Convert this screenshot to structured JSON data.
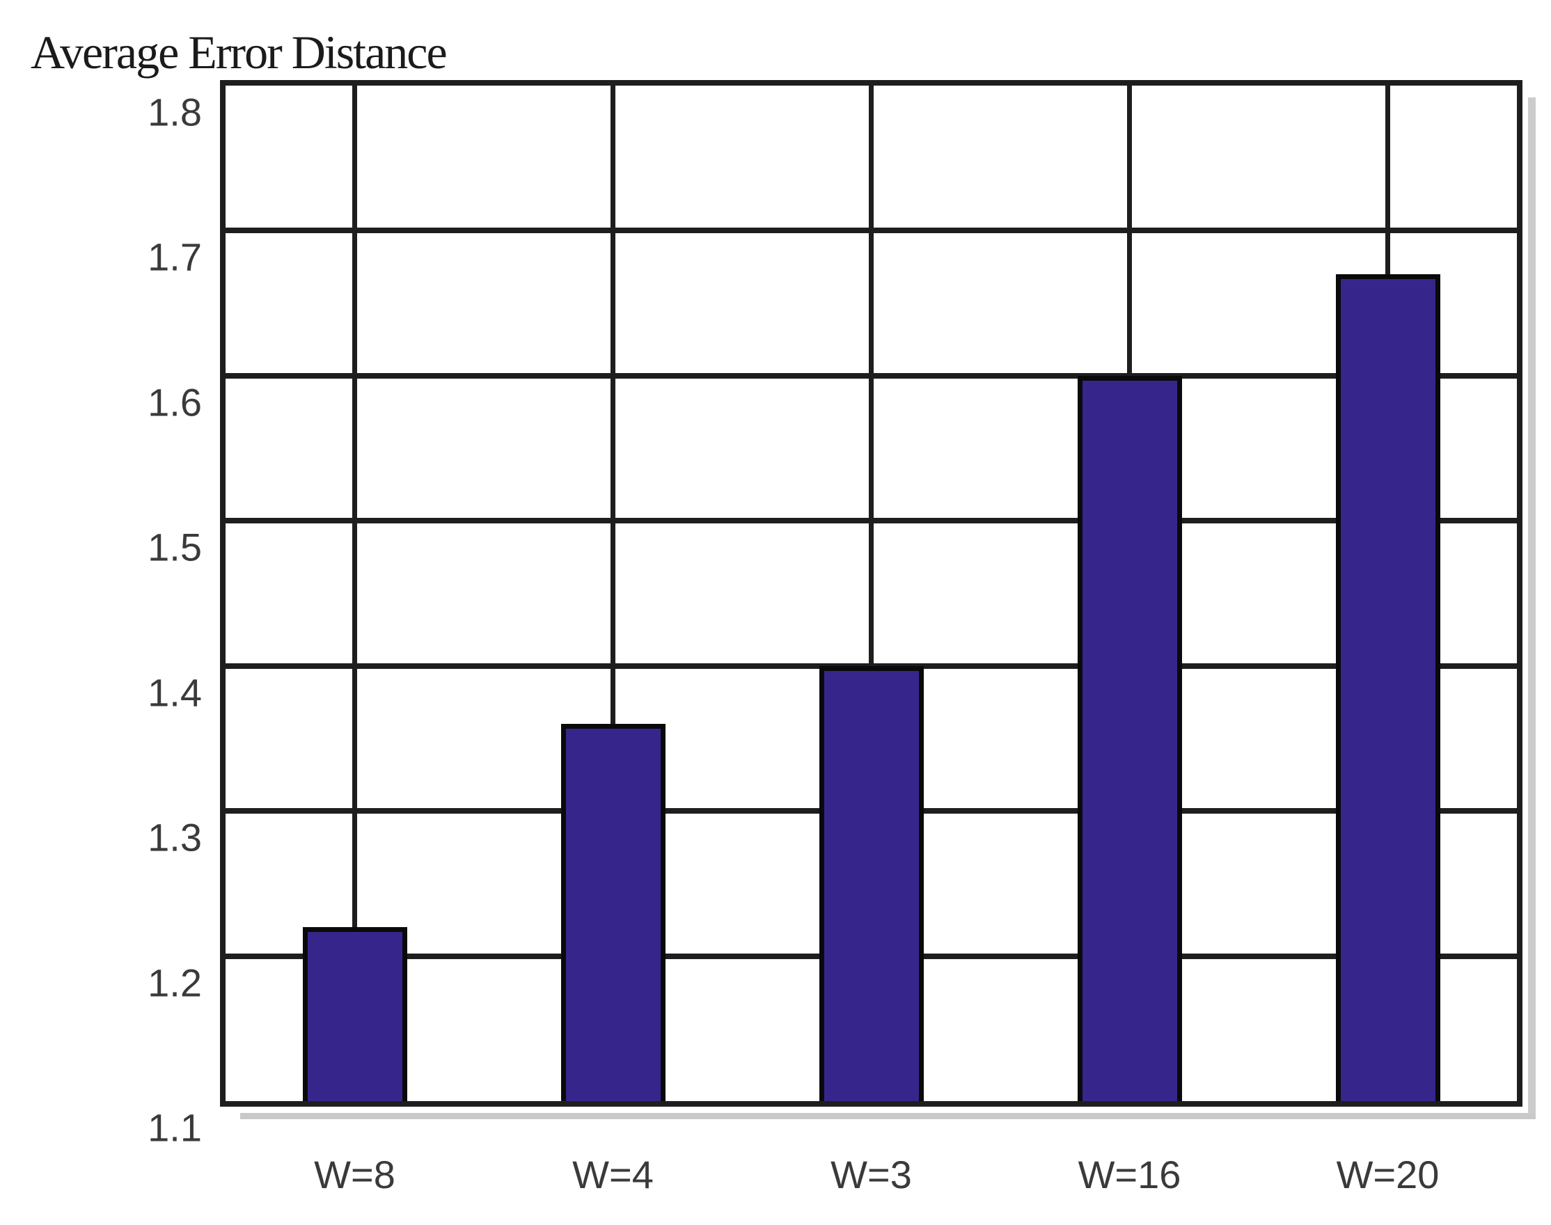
{
  "chart_data": {
    "type": "bar",
    "title": "Average Error Distance",
    "categories": [
      "W=8",
      "W=4",
      "W=3",
      "W=16",
      "W=20"
    ],
    "values": [
      1.22,
      1.36,
      1.4,
      1.6,
      1.67
    ],
    "xlabel": "",
    "ylabel": "",
    "ylim": [
      1.1,
      1.8
    ],
    "ytick_step": 0.1,
    "yticks": [
      "1.8",
      "1.7",
      "1.6",
      "1.5",
      "1.4",
      "1.3",
      "1.2",
      "1.1"
    ],
    "grid": true,
    "legend_position": "none",
    "colors": {
      "bar_fill": "#36268c",
      "bar_border": "#0a0a0a",
      "grid_line": "#1e1e1e",
      "tick_label": "#3a3a3a",
      "title_text": "#1b1b1b",
      "background": "#ffffff",
      "shadow": "#c9c9c9"
    }
  }
}
